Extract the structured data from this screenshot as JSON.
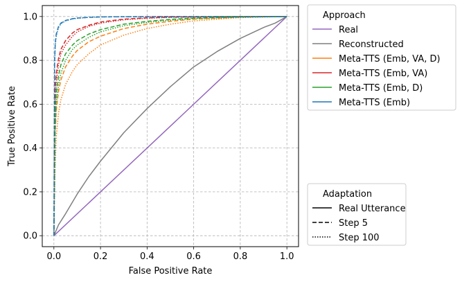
{
  "chart_data": {
    "type": "line",
    "title": "",
    "xlabel": "False Positive Rate",
    "ylabel": "True Positive Rate",
    "xlim": [
      -0.05,
      1.05
    ],
    "ylim": [
      -0.05,
      1.05
    ],
    "xticks": [
      "0.0",
      "0.2",
      "0.4",
      "0.6",
      "0.8",
      "1.0"
    ],
    "yticks": [
      "0.0",
      "0.2",
      "0.4",
      "0.6",
      "0.8",
      "1.0"
    ],
    "grid": true,
    "grid_style": "dashed",
    "series": [
      {
        "name": "Real",
        "approach": "Real",
        "adaptation": "Real Utterance",
        "color": "#9467bd",
        "style": "solid",
        "x": [
          0,
          1
        ],
        "y": [
          0,
          1
        ]
      },
      {
        "name": "Reconstructed",
        "approach": "Reconstructed",
        "adaptation": "Real Utterance",
        "color": "#7f7f7f",
        "style": "solid",
        "x": [
          0,
          0.02,
          0.05,
          0.1,
          0.15,
          0.2,
          0.3,
          0.4,
          0.5,
          0.6,
          0.7,
          0.8,
          0.9,
          0.95,
          1.0
        ],
        "y": [
          0,
          0.05,
          0.1,
          0.19,
          0.27,
          0.34,
          0.47,
          0.58,
          0.68,
          0.77,
          0.84,
          0.9,
          0.95,
          0.97,
          1.0
        ]
      },
      {
        "name": "Meta-TTS (Emb, VA, D)",
        "approach": "Meta-TTS (Emb, VA, D)",
        "adaptation": "Step 5",
        "color": "#ff7f0e",
        "style": "dashed",
        "x": [
          0,
          0.005,
          0.01,
          0.02,
          0.03,
          0.05,
          0.08,
          0.1,
          0.15,
          0.2,
          0.3,
          0.4,
          0.5,
          0.6,
          0.8,
          1.0
        ],
        "y": [
          0,
          0.45,
          0.57,
          0.66,
          0.71,
          0.77,
          0.82,
          0.845,
          0.885,
          0.91,
          0.945,
          0.965,
          0.978,
          0.988,
          0.997,
          1.0
        ]
      },
      {
        "name": "Meta-TTS (Emb, VA, D)",
        "approach": "Meta-TTS (Emb, VA, D)",
        "adaptation": "Step 100",
        "color": "#ff7f0e",
        "style": "dotted",
        "x": [
          0,
          0.005,
          0.01,
          0.02,
          0.03,
          0.05,
          0.08,
          0.1,
          0.15,
          0.2,
          0.3,
          0.4,
          0.5,
          0.6,
          0.8,
          1.0
        ],
        "y": [
          0,
          0.3,
          0.45,
          0.56,
          0.62,
          0.69,
          0.75,
          0.78,
          0.83,
          0.87,
          0.915,
          0.945,
          0.965,
          0.98,
          0.995,
          1.0
        ]
      },
      {
        "name": "Meta-TTS (Emb, VA)",
        "approach": "Meta-TTS (Emb, VA)",
        "adaptation": "Step 5",
        "color": "#d62728",
        "style": "dashed",
        "x": [
          0,
          0.005,
          0.01,
          0.02,
          0.03,
          0.05,
          0.08,
          0.1,
          0.15,
          0.2,
          0.3,
          0.4,
          0.5,
          0.7,
          1.0
        ],
        "y": [
          0,
          0.65,
          0.74,
          0.81,
          0.85,
          0.89,
          0.925,
          0.94,
          0.96,
          0.975,
          0.988,
          0.994,
          0.997,
          0.999,
          1.0
        ]
      },
      {
        "name": "Meta-TTS (Emb, VA)",
        "approach": "Meta-TTS (Emb, VA)",
        "adaptation": "Step 100",
        "color": "#d62728",
        "style": "dotted",
        "x": [
          0,
          0.005,
          0.01,
          0.02,
          0.03,
          0.05,
          0.08,
          0.1,
          0.15,
          0.2,
          0.3,
          0.4,
          0.5,
          0.7,
          1.0
        ],
        "y": [
          0,
          0.6,
          0.7,
          0.78,
          0.83,
          0.87,
          0.91,
          0.93,
          0.955,
          0.97,
          0.985,
          0.992,
          0.996,
          0.999,
          1.0
        ]
      },
      {
        "name": "Meta-TTS (Emb, D)",
        "approach": "Meta-TTS (Emb, D)",
        "adaptation": "Step 5",
        "color": "#2ca02c",
        "style": "dashed",
        "x": [
          0,
          0.005,
          0.01,
          0.02,
          0.03,
          0.05,
          0.08,
          0.1,
          0.15,
          0.2,
          0.3,
          0.4,
          0.5,
          0.6,
          0.8,
          1.0
        ],
        "y": [
          0,
          0.55,
          0.65,
          0.73,
          0.78,
          0.83,
          0.87,
          0.89,
          0.92,
          0.94,
          0.965,
          0.978,
          0.987,
          0.993,
          0.998,
          1.0
        ]
      },
      {
        "name": "Meta-TTS (Emb, D)",
        "approach": "Meta-TTS (Emb, D)",
        "adaptation": "Step 100",
        "color": "#2ca02c",
        "style": "dotted",
        "x": [
          0,
          0.005,
          0.01,
          0.02,
          0.03,
          0.05,
          0.08,
          0.1,
          0.15,
          0.2,
          0.3,
          0.4,
          0.5,
          0.6,
          0.8,
          1.0
        ],
        "y": [
          0,
          0.48,
          0.6,
          0.69,
          0.74,
          0.8,
          0.85,
          0.87,
          0.905,
          0.93,
          0.958,
          0.973,
          0.983,
          0.99,
          0.997,
          1.0
        ]
      },
      {
        "name": "Meta-TTS (Emb)",
        "approach": "Meta-TTS (Emb)",
        "adaptation": "Step 5",
        "color": "#1f77b4",
        "style": "dashed",
        "x": [
          0,
          0.003,
          0.006,
          0.01,
          0.02,
          0.03,
          0.05,
          0.08,
          0.1,
          0.15,
          0.2,
          0.3,
          0.5,
          1.0
        ],
        "y": [
          0,
          0.8,
          0.88,
          0.92,
          0.955,
          0.97,
          0.982,
          0.99,
          0.993,
          0.996,
          0.998,
          0.999,
          1.0,
          1.0
        ]
      },
      {
        "name": "Meta-TTS (Emb)",
        "approach": "Meta-TTS (Emb)",
        "adaptation": "Step 100",
        "color": "#1f77b4",
        "style": "dotted",
        "x": [
          0,
          0.003,
          0.006,
          0.01,
          0.02,
          0.03,
          0.05,
          0.08,
          0.1,
          0.15,
          0.2,
          0.3,
          0.5,
          1.0
        ],
        "y": [
          0,
          0.78,
          0.87,
          0.91,
          0.95,
          0.967,
          0.98,
          0.989,
          0.992,
          0.996,
          0.998,
          0.999,
          1.0,
          1.0
        ]
      }
    ],
    "legends": [
      {
        "title": "Approach",
        "placement": "upper right outside",
        "entries": [
          {
            "label": "Real",
            "color": "#9467bd",
            "style": "solid"
          },
          {
            "label": "Reconstructed",
            "color": "#7f7f7f",
            "style": "solid"
          },
          {
            "label": "Meta-TTS (Emb, VA, D)",
            "color": "#ff7f0e",
            "style": "solid"
          },
          {
            "label": "Meta-TTS (Emb, VA)",
            "color": "#d62728",
            "style": "solid"
          },
          {
            "label": "Meta-TTS (Emb, D)",
            "color": "#2ca02c",
            "style": "solid"
          },
          {
            "label": "Meta-TTS (Emb)",
            "color": "#1f77b4",
            "style": "solid"
          }
        ]
      },
      {
        "title": "Adaptation",
        "placement": "lower right outside",
        "entries": [
          {
            "label": "Real Utterance",
            "color": "#000000",
            "style": "solid"
          },
          {
            "label": "Step 5",
            "color": "#000000",
            "style": "dashed"
          },
          {
            "label": "Step 100",
            "color": "#000000",
            "style": "dotted"
          }
        ]
      }
    ]
  }
}
